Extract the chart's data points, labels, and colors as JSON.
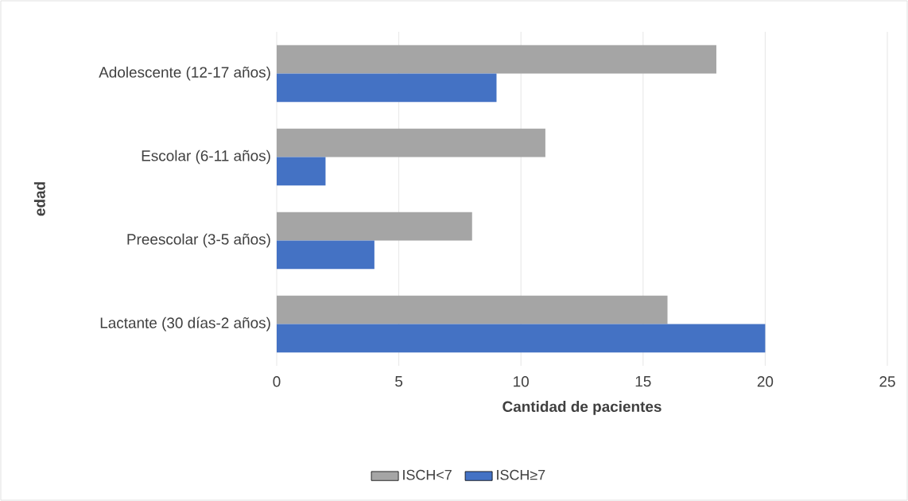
{
  "chart_data": {
    "type": "bar",
    "orientation": "horizontal",
    "xlabel": "Cantidad de pacientes",
    "ylabel": "edad",
    "categories": [
      "Adolescente (12-17 años)",
      "Escolar (6-11 años)",
      "Preescolar (3-5 años)",
      "Lactante (30 días-2 años)"
    ],
    "series": [
      {
        "name": "ISCH<7",
        "color": "#a5a5a5",
        "values": [
          18,
          11,
          8,
          16
        ]
      },
      {
        "name": "ISCH≥7",
        "color": "#4472c4",
        "values": [
          9,
          2,
          4,
          20
        ]
      }
    ],
    "xlim": [
      0,
      25
    ],
    "xticks": [
      0,
      5,
      10,
      15,
      20,
      25
    ],
    "grid": "x",
    "legend": "bottom"
  }
}
